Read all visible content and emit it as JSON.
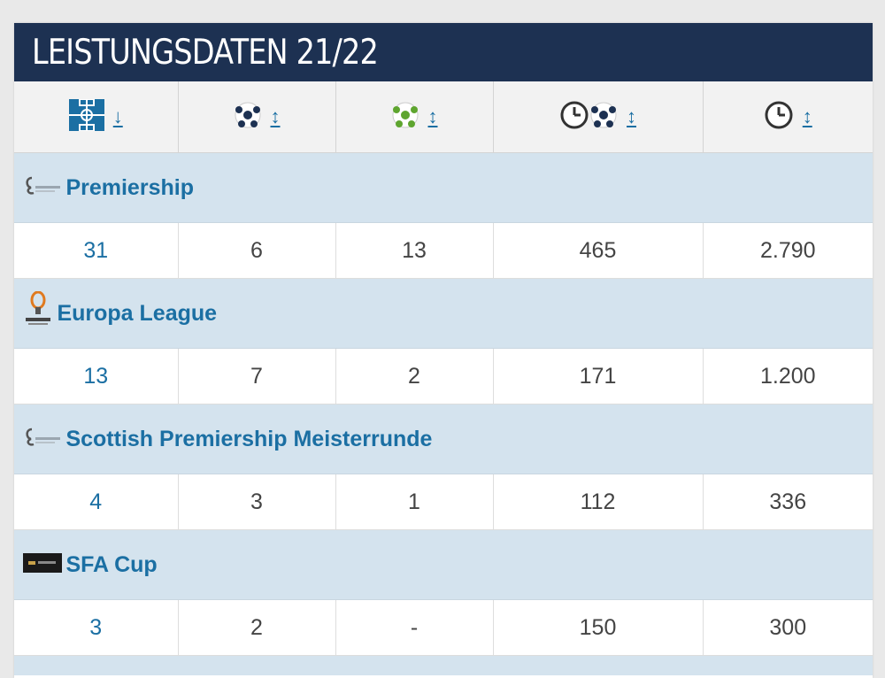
{
  "title": "LEISTUNGSDATEN 21/22",
  "columns": [
    {
      "icon": "pitch-appearances-icon",
      "sort": "↓"
    },
    {
      "icon": "goals-ball-icon",
      "sort": "↕"
    },
    {
      "icon": "assists-ball-icon",
      "sort": "↕"
    },
    {
      "icon": "minutes-per-goal-icon",
      "sort": "↕"
    },
    {
      "icon": "minutes-played-icon",
      "sort": "↕"
    }
  ],
  "competitions": [
    {
      "name": "Premiership",
      "logo": "premiership-logo-icon",
      "values": [
        "31",
        "6",
        "13",
        "465",
        "2.790"
      ]
    },
    {
      "name": "Europa League",
      "logo": "europa-league-logo-icon",
      "values": [
        "13",
        "7",
        "2",
        "171",
        "1.200"
      ]
    },
    {
      "name": "Scottish Premiership Meisterrunde",
      "logo": "premiership-logo-icon",
      "values": [
        "4",
        "3",
        "1",
        "112",
        "336"
      ]
    },
    {
      "name": "SFA Cup",
      "logo": "sfa-cup-logo-icon",
      "values": [
        "3",
        "2",
        "-",
        "150",
        "300"
      ]
    }
  ],
  "colors": {
    "header_bg": "#1d3152",
    "link": "#1b6fa3",
    "competition_bg": "#d4e3ee"
  }
}
